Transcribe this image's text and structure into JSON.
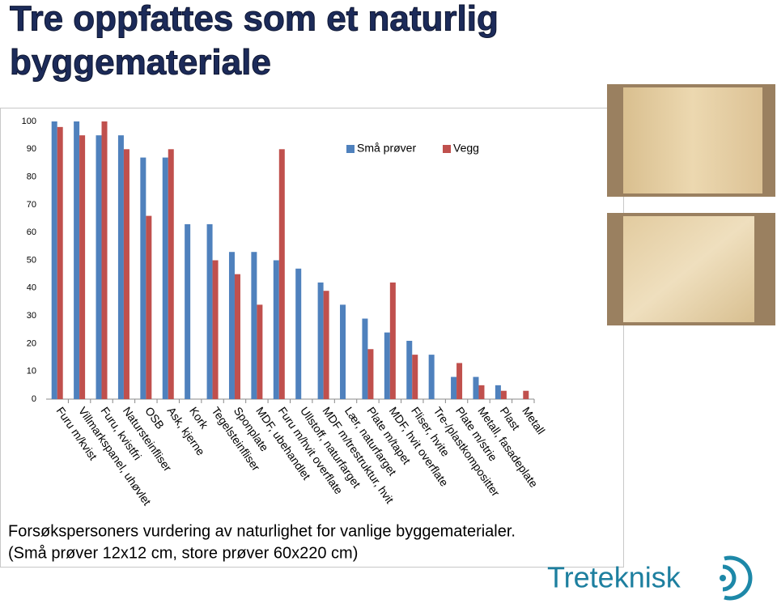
{
  "slide": {
    "title": [
      "Tre oppfattes som et naturlig",
      "byggemateriale"
    ],
    "caption": [
      "Forsøkspersoners vurdering av naturlighet for vanlige byggematerialer.",
      "(Små prøver 12x12 cm, store prøver 60x220 cm)"
    ],
    "logo": "Treteknisk"
  },
  "chart_data": {
    "type": "bar",
    "categories": [
      "Furu m/kvist",
      "Villmarkspanel, uhøvlet",
      "Furu, kvistfri",
      "Natursteinfliser",
      "OSB",
      "Ask, kjerne",
      "Kork",
      "Tegelsteinfliser",
      "Sponplate",
      "MDF, ubehandlet",
      "Furu m/hvit overflate",
      "Ullstoff, naturfarget",
      "MDF m/trestruktur, hvit",
      "Lær, naturfarget",
      "Plate m/tapet",
      "MDF, hvit overflate",
      "Fliser, hvite",
      "Tre-/plastkompositter",
      "Plate m/strie",
      "Metall, fasadeplate",
      "Plast",
      "Metall"
    ],
    "series": [
      {
        "name": "Små prøver",
        "color": "#4f81bd",
        "values": [
          100,
          100,
          95,
          95,
          87,
          87,
          63,
          63,
          53,
          53,
          50,
          47,
          42,
          34,
          29,
          24,
          21,
          16,
          8,
          8,
          5,
          null
        ]
      },
      {
        "name": "Vegg",
        "color": "#c0504d",
        "values": [
          98,
          95,
          100,
          90,
          66,
          90,
          null,
          50,
          45,
          34,
          90,
          null,
          39,
          null,
          18,
          42,
          16,
          null,
          13,
          5,
          3,
          3
        ]
      }
    ],
    "ylim": [
      0,
      100
    ],
    "yticks": [
      0,
      10,
      20,
      30,
      40,
      50,
      60,
      70,
      80,
      90,
      100
    ],
    "grid": false
  }
}
